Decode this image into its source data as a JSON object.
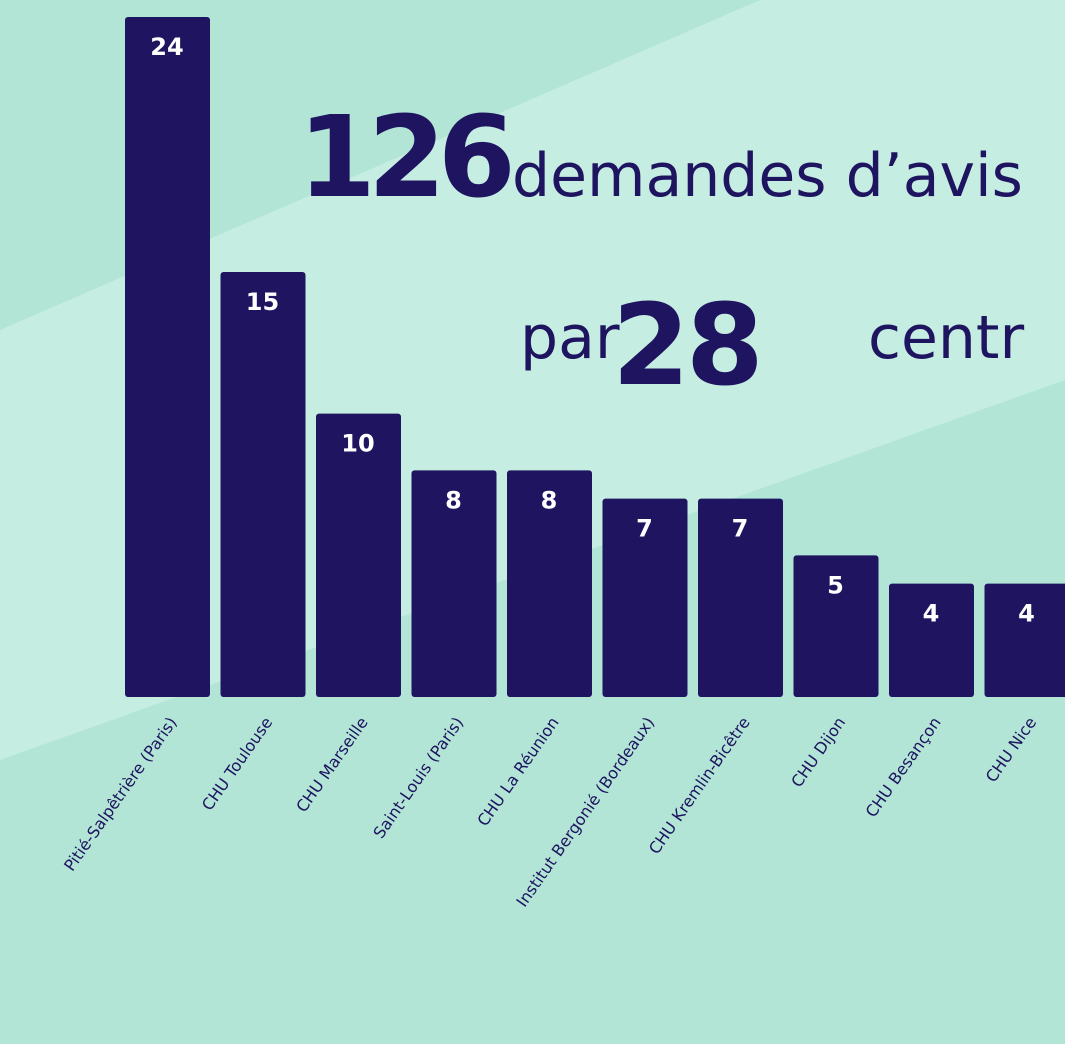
{
  "chart_data": {
    "type": "bar",
    "headline": {
      "count": "126",
      "text": "demandes d’avis",
      "prefix": "par",
      "centers": "28",
      "suffix": "centr"
    },
    "categories": [
      "Pitié-Salpêtrière (Paris)",
      "CHU Toulouse",
      "CHU Marseille",
      "Saint-Louis (Paris)",
      "CHU La Réunion",
      "Institut Bergonié (Bordeaux)",
      "CHU Kremlin-Bicêtre",
      "CHU Dijon",
      "CHU Besançon",
      "CHU Nice"
    ],
    "values": [
      24,
      15,
      10,
      8,
      8,
      7,
      7,
      5,
      4,
      4
    ],
    "color": "#1e1460"
  }
}
